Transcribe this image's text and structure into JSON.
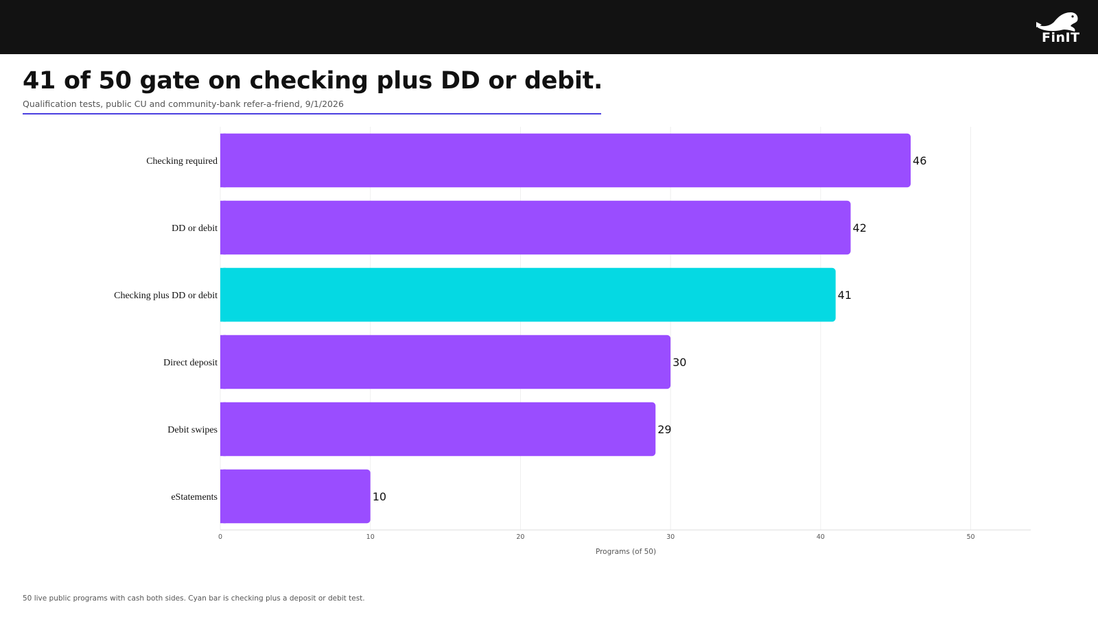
{
  "header": {
    "logo_text": "FinIT",
    "logo_icon": "seal-icon"
  },
  "title": "41 of 50 gate on checking plus DD or debit.",
  "subtitle": "Qualification tests, public CU and community-bank refer-a-friend, 9/1/2026",
  "footnote": "50 live public programs with cash both sides. Cyan bar is checking plus a deposit or debit test.",
  "colors": {
    "bar_default": "#9a4dff",
    "bar_highlight": "#05d9e3",
    "rule": "#4a3ee0",
    "topbar": "#121212"
  },
  "chart_data": {
    "type": "bar",
    "orientation": "horizontal",
    "categories": [
      "Checking required",
      "DD or debit",
      "Checking plus DD or debit",
      "Direct deposit",
      "Debit swipes",
      "eStatements"
    ],
    "values": [
      46,
      42,
      41,
      30,
      29,
      10
    ],
    "highlight": "Checking plus DD or debit",
    "xlabel": "Programs (of 50)",
    "ylabel": "",
    "xlim": [
      0,
      54
    ],
    "xticks": [
      0,
      10,
      20,
      30,
      40,
      50
    ],
    "grid": true,
    "legend": "none"
  }
}
